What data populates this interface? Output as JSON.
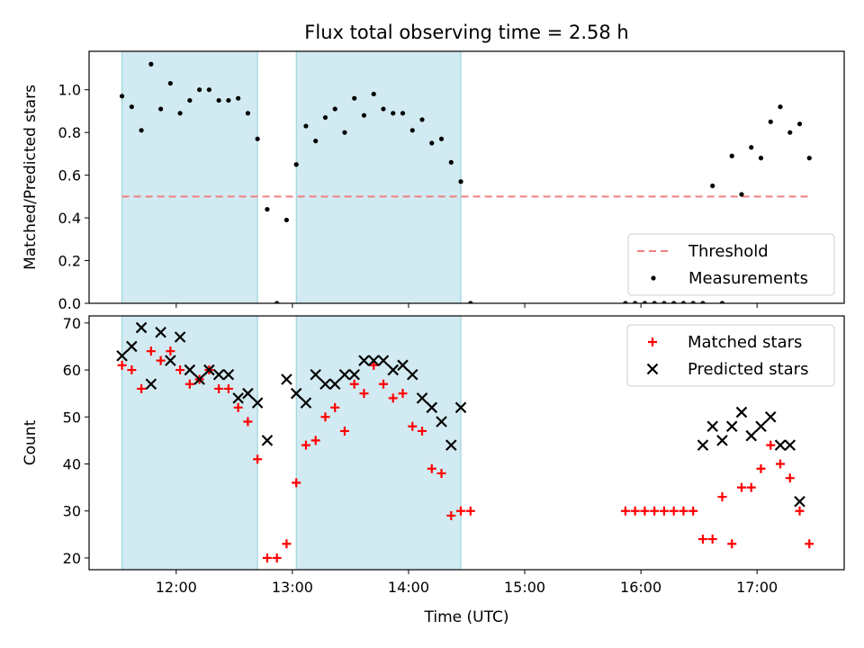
{
  "chart_data": {
    "type": "scatter",
    "title": "Flux total observing time = 2.58 h",
    "xlabel": "Time (UTC)",
    "x_unit": "hours UTC",
    "xlim": [
      "11:15",
      "17:45"
    ],
    "x_ticks": [
      "12:00",
      "13:00",
      "14:00",
      "15:00",
      "16:00",
      "17:00"
    ],
    "shaded_intervals": [
      [
        "11:32",
        "12:42"
      ],
      [
        "13:02",
        "14:27"
      ]
    ],
    "shade_color": "#add8e6",
    "panels": [
      {
        "ylabel": "Matched/Predicted stars",
        "ylim": [
          0,
          1.18
        ],
        "y_ticks": [
          "0.0",
          "0.2",
          "0.4",
          "0.6",
          "0.8",
          "1.0"
        ],
        "legend_position": "lower right",
        "series": [
          {
            "name": "Threshold",
            "kind": "line",
            "color": "#f08080",
            "x": [
              "11:32",
              "17:27"
            ],
            "values": [
              0.5,
              0.5
            ]
          },
          {
            "name": "Measurements",
            "kind": "point",
            "color": "#000000",
            "x": [
              "11:32",
              "11:37",
              "11:42",
              "11:47",
              "11:52",
              "11:57",
              "12:02",
              "12:07",
              "12:12",
              "12:17",
              "12:22",
              "12:27",
              "12:32",
              "12:37",
              "12:42",
              "12:47",
              "12:52",
              "12:57",
              "13:02",
              "13:07",
              "13:12",
              "13:17",
              "13:22",
              "13:27",
              "13:32",
              "13:37",
              "13:42",
              "13:47",
              "13:52",
              "13:57",
              "14:02",
              "14:07",
              "14:12",
              "14:17",
              "14:22",
              "14:27",
              "14:32",
              "15:52",
              "15:57",
              "16:02",
              "16:07",
              "16:12",
              "16:17",
              "16:22",
              "16:27",
              "16:32",
              "16:37",
              "16:42",
              "16:47",
              "16:52",
              "16:57",
              "17:02",
              "17:07",
              "17:12",
              "17:17",
              "17:22",
              "17:27"
            ],
            "values": [
              0.97,
              0.92,
              0.81,
              1.12,
              0.91,
              1.03,
              0.89,
              0.95,
              1.0,
              1.0,
              0.95,
              0.95,
              0.96,
              0.89,
              0.77,
              0.44,
              0.0,
              0.39,
              0.65,
              0.83,
              0.76,
              0.87,
              0.91,
              0.8,
              0.96,
              0.88,
              0.98,
              0.91,
              0.89,
              0.89,
              0.81,
              0.86,
              0.75,
              0.77,
              0.66,
              0.57,
              0.0,
              0.0,
              0.0,
              0.0,
              0.0,
              0.0,
              0.0,
              0.0,
              0.0,
              0.0,
              0.55,
              0.0,
              0.69,
              0.51,
              0.73,
              0.68,
              0.85,
              0.92,
              0.8,
              0.84,
              0.68
            ]
          }
        ]
      },
      {
        "ylabel": "Count",
        "ylim": [
          17.5,
          71.5
        ],
        "y_ticks": [
          "20",
          "30",
          "40",
          "50",
          "60",
          "70"
        ],
        "legend_position": "upper right",
        "series": [
          {
            "name": "Matched stars",
            "kind": "plus",
            "color": "#ff0000",
            "x": [
              "11:32",
              "11:37",
              "11:42",
              "11:47",
              "11:52",
              "11:57",
              "12:02",
              "12:07",
              "12:12",
              "12:17",
              "12:22",
              "12:27",
              "12:32",
              "12:37",
              "12:42",
              "12:47",
              "12:52",
              "12:57",
              "13:02",
              "13:07",
              "13:12",
              "13:17",
              "13:22",
              "13:27",
              "13:32",
              "13:37",
              "13:42",
              "13:47",
              "13:52",
              "13:57",
              "14:02",
              "14:07",
              "14:12",
              "14:17",
              "14:22",
              "14:27",
              "14:32",
              "15:52",
              "15:57",
              "16:02",
              "16:07",
              "16:12",
              "16:17",
              "16:22",
              "16:27",
              "16:32",
              "16:37",
              "16:42",
              "16:47",
              "16:52",
              "16:57",
              "17:02",
              "17:07",
              "17:12",
              "17:17",
              "17:22",
              "17:27"
            ],
            "values": [
              61,
              60,
              56,
              64,
              62,
              64,
              60,
              57,
              58,
              60,
              56,
              56,
              52,
              49,
              41,
              20,
              20,
              23,
              36,
              44,
              45,
              50,
              52,
              47,
              57,
              55,
              61,
              57,
              54,
              55,
              48,
              47,
              39,
              38,
              29,
              30,
              30,
              30,
              30,
              30,
              30,
              30,
              30,
              30,
              30,
              24,
              24,
              33,
              23,
              35,
              35,
              39,
              44,
              40,
              37,
              30,
              23
            ]
          },
          {
            "name": "Predicted stars",
            "kind": "cross",
            "color": "#000000",
            "x": [
              "11:32",
              "11:37",
              "11:42",
              "11:47",
              "11:52",
              "11:57",
              "12:02",
              "12:07",
              "12:12",
              "12:17",
              "12:22",
              "12:27",
              "12:32",
              "12:37",
              "12:42",
              "12:47",
              "12:57",
              "13:02",
              "13:07",
              "13:12",
              "13:17",
              "13:22",
              "13:27",
              "13:32",
              "13:37",
              "13:42",
              "13:47",
              "13:52",
              "13:57",
              "14:02",
              "14:07",
              "14:12",
              "14:17",
              "14:22",
              "14:27",
              "16:32",
              "16:37",
              "16:42",
              "16:47",
              "16:52",
              "16:57",
              "17:02",
              "17:07",
              "17:12",
              "17:17",
              "17:22"
            ],
            "values": [
              63,
              65,
              69,
              57,
              68,
              62,
              67,
              60,
              58,
              60,
              59,
              59,
              54,
              55,
              53,
              45,
              58,
              55,
              53,
              59,
              57,
              57,
              59,
              59,
              62,
              62,
              62,
              60,
              61,
              59,
              54,
              52,
              49,
              44,
              52,
              44,
              48,
              45,
              48,
              51,
              46,
              48,
              50,
              44,
              44,
              32
            ]
          }
        ]
      }
    ]
  }
}
